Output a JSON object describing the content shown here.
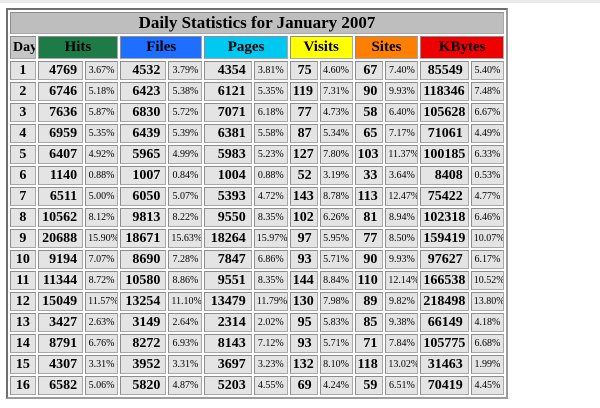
{
  "title": "Daily Statistics for January 2007",
  "columns": {
    "day_label": "Day",
    "groups": [
      {
        "label": "Hits",
        "color": "#1e7a46"
      },
      {
        "label": "Files",
        "color": "#1e6eff"
      },
      {
        "label": "Pages",
        "color": "#00c8f0"
      },
      {
        "label": "Visits",
        "color": "#ffff00"
      },
      {
        "label": "Sites",
        "color": "#ff8000"
      },
      {
        "label": "KBytes",
        "color": "#ee0000"
      }
    ]
  },
  "chart_data": {
    "type": "table",
    "title": "Daily Statistics for January 2007",
    "columns": [
      "Day",
      "Hits",
      "Hits %",
      "Files",
      "Files %",
      "Pages",
      "Pages %",
      "Visits",
      "Visits %",
      "Sites",
      "Sites %",
      "KBytes",
      "KBytes %"
    ],
    "rows": [
      [
        "1",
        "4769",
        "3.67%",
        "4532",
        "3.79%",
        "4354",
        "3.81%",
        "75",
        "4.60%",
        "67",
        "7.40%",
        "85549",
        "5.40%"
      ],
      [
        "2",
        "6746",
        "5.18%",
        "6423",
        "5.38%",
        "6121",
        "5.35%",
        "119",
        "7.31%",
        "90",
        "9.93%",
        "118346",
        "7.48%"
      ],
      [
        "3",
        "7636",
        "5.87%",
        "6830",
        "5.72%",
        "7071",
        "6.18%",
        "77",
        "4.73%",
        "58",
        "6.40%",
        "105628",
        "6.67%"
      ],
      [
        "4",
        "6959",
        "5.35%",
        "6439",
        "5.39%",
        "6381",
        "5.58%",
        "87",
        "5.34%",
        "65",
        "7.17%",
        "71061",
        "4.49%"
      ],
      [
        "5",
        "6407",
        "4.92%",
        "5965",
        "4.99%",
        "5983",
        "5.23%",
        "127",
        "7.80%",
        "103",
        "11.37%",
        "100185",
        "6.33%"
      ],
      [
        "6",
        "1140",
        "0.88%",
        "1007",
        "0.84%",
        "1004",
        "0.88%",
        "52",
        "3.19%",
        "33",
        "3.64%",
        "8408",
        "0.53%"
      ],
      [
        "7",
        "6511",
        "5.00%",
        "6050",
        "5.07%",
        "5393",
        "4.72%",
        "143",
        "8.78%",
        "113",
        "12.47%",
        "75422",
        "4.77%"
      ],
      [
        "8",
        "10562",
        "8.12%",
        "9813",
        "8.22%",
        "9550",
        "8.35%",
        "102",
        "6.26%",
        "81",
        "8.94%",
        "102318",
        "6.46%"
      ],
      [
        "9",
        "20688",
        "15.90%",
        "18671",
        "15.63%",
        "18264",
        "15.97%",
        "97",
        "5.95%",
        "77",
        "8.50%",
        "159419",
        "10.07%"
      ],
      [
        "10",
        "9194",
        "7.07%",
        "8690",
        "7.28%",
        "7847",
        "6.86%",
        "93",
        "5.71%",
        "90",
        "9.93%",
        "97627",
        "6.17%"
      ],
      [
        "11",
        "11344",
        "8.72%",
        "10580",
        "8.86%",
        "9551",
        "8.35%",
        "144",
        "8.84%",
        "110",
        "12.14%",
        "166538",
        "10.52%"
      ],
      [
        "12",
        "15049",
        "11.57%",
        "13254",
        "11.10%",
        "13479",
        "11.79%",
        "130",
        "7.98%",
        "89",
        "9.82%",
        "218498",
        "13.80%"
      ],
      [
        "13",
        "3427",
        "2.63%",
        "3149",
        "2.64%",
        "2314",
        "2.02%",
        "95",
        "5.83%",
        "85",
        "9.38%",
        "66149",
        "4.18%"
      ],
      [
        "14",
        "8791",
        "6.76%",
        "8272",
        "6.93%",
        "8143",
        "7.12%",
        "93",
        "5.71%",
        "71",
        "7.84%",
        "105775",
        "6.68%"
      ],
      [
        "15",
        "4307",
        "3.31%",
        "3952",
        "3.31%",
        "3697",
        "3.23%",
        "132",
        "8.10%",
        "118",
        "13.02%",
        "31463",
        "1.99%"
      ],
      [
        "16",
        "6582",
        "5.06%",
        "5820",
        "4.87%",
        "5203",
        "4.55%",
        "69",
        "4.24%",
        "59",
        "6.51%",
        "70419",
        "4.45%"
      ]
    ]
  }
}
